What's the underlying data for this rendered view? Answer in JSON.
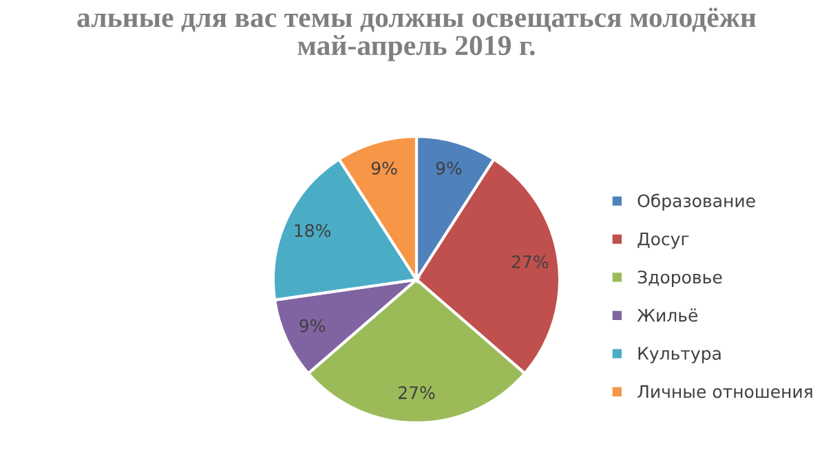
{
  "chart_data": {
    "type": "pie",
    "title": "альные для вас темы должны освещаться молодёжн\nмай-апрель 2019 г.",
    "categories": [
      "Образование",
      "Досуг",
      "Здоровье",
      "Жильё",
      "Культура",
      "Личные отношения"
    ],
    "values": [
      9,
      27,
      27,
      9,
      18,
      9
    ],
    "colors": [
      "#4f81bd",
      "#c0504d",
      "#9bbb59",
      "#8064a2",
      "#4bacc6",
      "#f79646"
    ],
    "value_labels": [
      "9%",
      "27%",
      "27%",
      "9%",
      "18%",
      "9%"
    ],
    "legend": "right"
  }
}
